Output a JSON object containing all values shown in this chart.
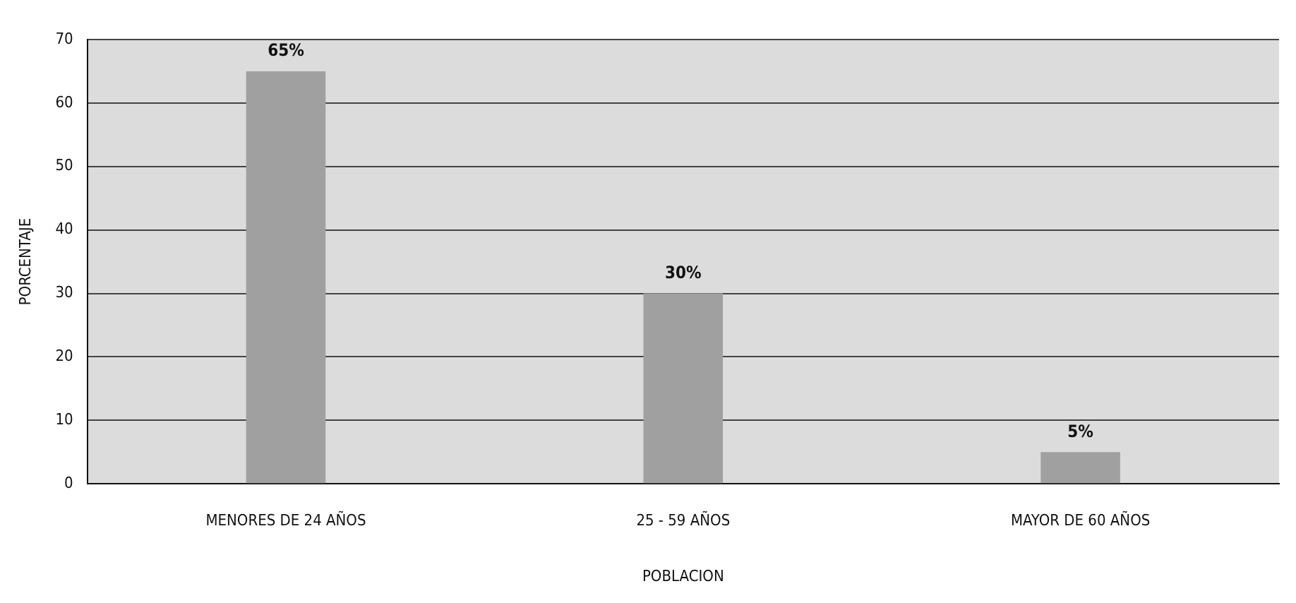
{
  "chart_data": {
    "type": "bar",
    "xlabel": "POBLACION",
    "ylabel": "PORCENTAJE",
    "categories": [
      "MENORES DE 24 AÑOS",
      "25 - 59 AÑOS",
      "MAYOR DE 60 AÑOS"
    ],
    "values": [
      65,
      30,
      5
    ],
    "value_labels": [
      "65%",
      "30%",
      "5%"
    ],
    "color": "#a0a0a0",
    "ylim": [
      0,
      70
    ],
    "yticks": [
      0,
      10,
      20,
      30,
      40,
      50,
      60,
      70
    ],
    "grid": "y",
    "legend": false
  }
}
